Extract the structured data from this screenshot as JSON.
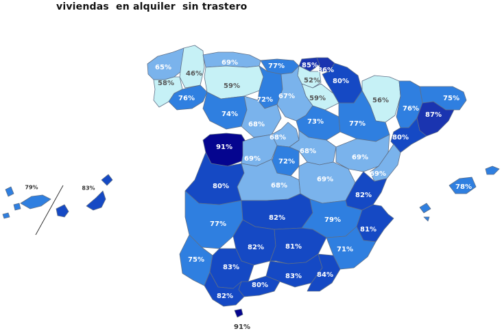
{
  "title": "viviendas  en alquiler  sin trastero",
  "color_scale": {
    "50-59": "#c6f1f6",
    "60-69": "#7ab3ec",
    "70-79": "#2f7fe0",
    "80-84": "#1549c4",
    "85-89": "#1a34b0",
    "90-100": "#05058f"
  },
  "provinces": [
    {
      "name": "A Coruña",
      "value": "65%"
    },
    {
      "name": "Lugo",
      "value": "46%"
    },
    {
      "name": "Pontevedra",
      "value": "58%"
    },
    {
      "name": "Ourense",
      "value": "76%"
    },
    {
      "name": "Asturias",
      "value": "69%"
    },
    {
      "name": "León",
      "value": "59%"
    },
    {
      "name": "Cantabria",
      "value": "77%"
    },
    {
      "name": "Bizkaia",
      "value": "85%"
    },
    {
      "name": "Gipuzkoa",
      "value": "86%"
    },
    {
      "name": "Álava",
      "value": "52%"
    },
    {
      "name": "Navarra",
      "value": "80%"
    },
    {
      "name": "La Rioja",
      "value": "59%"
    },
    {
      "name": "Palencia",
      "value": "72%"
    },
    {
      "name": "Burgos",
      "value": "67%"
    },
    {
      "name": "Huesca",
      "value": "56%"
    },
    {
      "name": "Girona",
      "value": "75%"
    },
    {
      "name": "Lleida",
      "value": "76%"
    },
    {
      "name": "Barcelona",
      "value": "87%"
    },
    {
      "name": "Tarragona",
      "value": "80%"
    },
    {
      "name": "Zamora",
      "value": "74%"
    },
    {
      "name": "Valladolid",
      "value": "68%"
    },
    {
      "name": "Soria",
      "value": "73%"
    },
    {
      "name": "Zaragoza",
      "value": "77%"
    },
    {
      "name": "Salamanca",
      "value": "91%"
    },
    {
      "name": "Segovia",
      "value": "68%"
    },
    {
      "name": "Ávila",
      "value": "69%"
    },
    {
      "name": "Madrid",
      "value": "72%"
    },
    {
      "name": "Guadalajara",
      "value": "68%"
    },
    {
      "name": "Teruel",
      "value": "69%"
    },
    {
      "name": "Castellón",
      "value": "69%"
    },
    {
      "name": "Cáceres",
      "value": "80%"
    },
    {
      "name": "Toledo",
      "value": "68%"
    },
    {
      "name": "Cuenca",
      "value": "69%"
    },
    {
      "name": "Valencia",
      "value": "82%"
    },
    {
      "name": "Illes Balears",
      "value": "78%"
    },
    {
      "name": "Badajoz",
      "value": "77%"
    },
    {
      "name": "Ciudad Real",
      "value": "82%"
    },
    {
      "name": "Albacete",
      "value": "79%"
    },
    {
      "name": "Alicante",
      "value": "81%"
    },
    {
      "name": "Murcia",
      "value": "71%"
    },
    {
      "name": "Huelva",
      "value": "75%"
    },
    {
      "name": "Córdoba",
      "value": "82%"
    },
    {
      "name": "Jaén",
      "value": "81%"
    },
    {
      "name": "Sevilla",
      "value": "83%"
    },
    {
      "name": "Granada",
      "value": "83%"
    },
    {
      "name": "Almería",
      "value": "84%"
    },
    {
      "name": "Málaga",
      "value": "80%"
    },
    {
      "name": "Cádiz",
      "value": "82%"
    },
    {
      "name": "Ceuta",
      "value": "91%"
    },
    {
      "name": "Santa Cruz de Tenerife",
      "value": "79%"
    },
    {
      "name": "Las Palmas",
      "value": "83%"
    }
  ]
}
